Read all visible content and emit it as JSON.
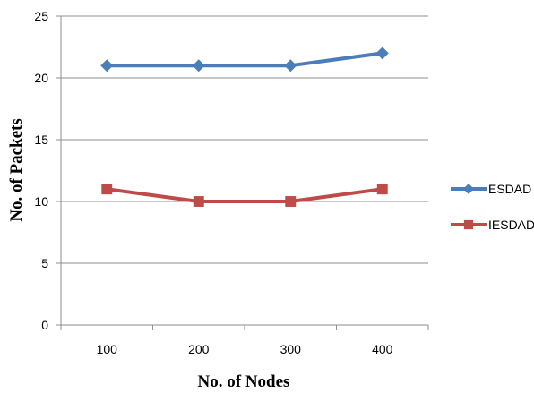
{
  "chart_data": {
    "type": "line",
    "categories": [
      "100",
      "200",
      "300",
      "400"
    ],
    "series": [
      {
        "name": "ESDAD",
        "values": [
          21,
          21,
          21,
          22
        ],
        "color": "#4a7ebb",
        "marker": "diamond"
      },
      {
        "name": "IESDAD",
        "values": [
          11,
          10,
          10,
          11
        ],
        "color": "#be4b48",
        "marker": "square"
      }
    ],
    "xlabel": "No. of Nodes",
    "ylabel": "No. of Packets",
    "ylim": [
      0,
      25
    ],
    "yticks": [
      "0",
      "5",
      "10",
      "15",
      "20",
      "25"
    ],
    "grid": true,
    "legend_position": "right"
  }
}
